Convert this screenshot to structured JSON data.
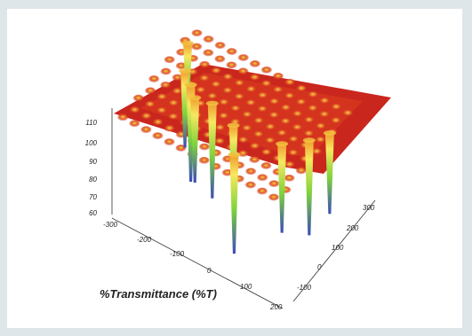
{
  "chart_data": {
    "type": "surface3d",
    "title": "",
    "xlabel": "%Transmittance (%T)",
    "ylabel": "",
    "zlabel": "",
    "x_ticks": [
      "-300",
      "-200",
      "-100",
      "0",
      "100",
      "200"
    ],
    "y_ticks": [
      "300",
      "200",
      "100",
      "0",
      "-100"
    ],
    "z_ticks": [
      "110",
      "100",
      "90",
      "80",
      "70",
      "60"
    ],
    "xlim": [
      -300,
      200
    ],
    "ylim": [
      -100,
      300
    ],
    "zlim": [
      60,
      110
    ],
    "surface_plateau": 110,
    "wells": [
      {
        "x": -270,
        "y": 220,
        "min": 78
      },
      {
        "x": -230,
        "y": 140,
        "min": 72
      },
      {
        "x": -195,
        "y": 110,
        "min": 62
      },
      {
        "x": -165,
        "y": 80,
        "min": 68
      },
      {
        "x": -120,
        "y": 90,
        "min": 63
      },
      {
        "x": -40,
        "y": 60,
        "min": 74
      },
      {
        "x": 10,
        "y": -20,
        "min": 61
      },
      {
        "x": 90,
        "y": 80,
        "min": 66
      },
      {
        "x": 140,
        "y": 130,
        "min": 63
      },
      {
        "x": 170,
        "y": 180,
        "min": 70
      }
    ],
    "colormap": [
      "#3a4ab8",
      "#7fd43c",
      "#f7e860",
      "#ef9a2e",
      "#d5231e"
    ],
    "grid": false,
    "legend": false
  }
}
